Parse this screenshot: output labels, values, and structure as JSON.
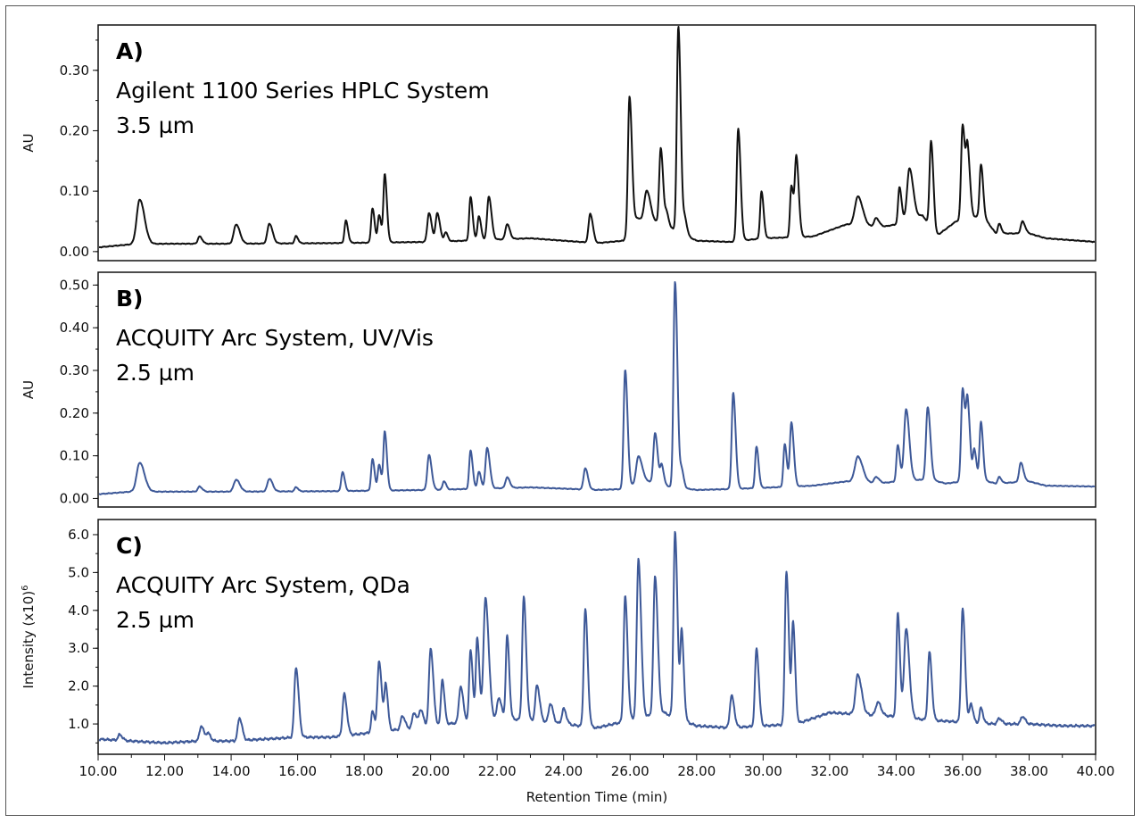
{
  "chart_data": {
    "type": "line",
    "xlabel": "Retention Time (min)",
    "xlim": [
      10.0,
      40.0
    ],
    "xticks": [
      "10.00",
      "12.00",
      "14.00",
      "16.00",
      "18.00",
      "20.00",
      "22.00",
      "24.00",
      "26.00",
      "28.00",
      "30.00",
      "32.00",
      "34.00",
      "36.00",
      "38.00",
      "40.00"
    ],
    "grid": false,
    "panels": [
      {
        "id": "A",
        "panel_label": "A)",
        "title": "Agilent 1100 Series HPLC System",
        "subtitle": "3.5 µm",
        "ylabel": "AU",
        "ylim": [
          -0.015,
          0.375
        ],
        "yticks": [
          "0.00",
          "0.10",
          "0.20",
          "0.30"
        ],
        "ytick_values": [
          0.0,
          0.1,
          0.2,
          0.3
        ],
        "color": "#111111",
        "baseline": [
          [
            10.0,
            0.007
          ],
          [
            11.0,
            0.012
          ],
          [
            12.0,
            0.013
          ],
          [
            14.0,
            0.013
          ],
          [
            17.0,
            0.014
          ],
          [
            20.0,
            0.016
          ],
          [
            23.0,
            0.022
          ],
          [
            25.0,
            0.014
          ],
          [
            25.8,
            0.018
          ],
          [
            26.2,
            0.055
          ],
          [
            27.0,
            0.045
          ],
          [
            28.0,
            0.018
          ],
          [
            29.0,
            0.016
          ],
          [
            30.0,
            0.022
          ],
          [
            31.5,
            0.025
          ],
          [
            32.5,
            0.045
          ],
          [
            33.5,
            0.04
          ],
          [
            34.0,
            0.045
          ],
          [
            34.8,
            0.06
          ],
          [
            35.2,
            0.025
          ],
          [
            35.8,
            0.05
          ],
          [
            36.6,
            0.06
          ],
          [
            37.0,
            0.03
          ],
          [
            38.0,
            0.03
          ],
          [
            38.5,
            0.022
          ],
          [
            40.0,
            0.016
          ]
        ],
        "peaks": [
          {
            "rt": 11.25,
            "height": 0.074,
            "width": 0.09
          },
          {
            "rt": 13.05,
            "height": 0.012,
            "width": 0.05
          },
          {
            "rt": 14.15,
            "height": 0.032,
            "width": 0.07
          },
          {
            "rt": 15.15,
            "height": 0.033,
            "width": 0.06
          },
          {
            "rt": 15.95,
            "height": 0.012,
            "width": 0.04
          },
          {
            "rt": 17.45,
            "height": 0.037,
            "width": 0.04
          },
          {
            "rt": 18.25,
            "height": 0.057,
            "width": 0.04
          },
          {
            "rt": 18.45,
            "height": 0.045,
            "width": 0.04
          },
          {
            "rt": 18.62,
            "height": 0.112,
            "width": 0.04
          },
          {
            "rt": 19.95,
            "height": 0.048,
            "width": 0.05
          },
          {
            "rt": 20.2,
            "height": 0.047,
            "width": 0.05
          },
          {
            "rt": 20.45,
            "height": 0.015,
            "width": 0.04
          },
          {
            "rt": 21.2,
            "height": 0.072,
            "width": 0.04
          },
          {
            "rt": 21.45,
            "height": 0.04,
            "width": 0.04
          },
          {
            "rt": 21.75,
            "height": 0.072,
            "width": 0.05
          },
          {
            "rt": 22.3,
            "height": 0.025,
            "width": 0.05
          },
          {
            "rt": 24.8,
            "height": 0.048,
            "width": 0.05
          },
          {
            "rt": 25.98,
            "height": 0.222,
            "width": 0.045
          },
          {
            "rt": 26.5,
            "height": 0.05,
            "width": 0.07
          },
          {
            "rt": 26.92,
            "height": 0.125,
            "width": 0.045
          },
          {
            "rt": 27.1,
            "height": 0.02,
            "width": 0.04
          },
          {
            "rt": 27.45,
            "height": 0.34,
            "width": 0.045
          },
          {
            "rt": 27.65,
            "height": 0.025,
            "width": 0.04
          },
          {
            "rt": 29.25,
            "height": 0.186,
            "width": 0.045
          },
          {
            "rt": 29.95,
            "height": 0.078,
            "width": 0.04
          },
          {
            "rt": 30.85,
            "height": 0.085,
            "width": 0.04
          },
          {
            "rt": 31.0,
            "height": 0.13,
            "width": 0.045
          },
          {
            "rt": 32.85,
            "height": 0.048,
            "width": 0.09
          },
          {
            "rt": 33.4,
            "height": 0.015,
            "width": 0.06
          },
          {
            "rt": 34.1,
            "height": 0.06,
            "width": 0.04
          },
          {
            "rt": 34.4,
            "height": 0.085,
            "width": 0.07
          },
          {
            "rt": 35.05,
            "height": 0.145,
            "width": 0.045
          },
          {
            "rt": 36.0,
            "height": 0.158,
            "width": 0.045
          },
          {
            "rt": 36.15,
            "height": 0.11,
            "width": 0.045
          },
          {
            "rt": 36.55,
            "height": 0.085,
            "width": 0.04
          },
          {
            "rt": 37.1,
            "height": 0.016,
            "width": 0.04
          },
          {
            "rt": 37.8,
            "height": 0.02,
            "width": 0.05
          }
        ]
      },
      {
        "id": "B",
        "panel_label": "B)",
        "title": "ACQUITY Arc System, UV/Vis",
        "subtitle": "2.5 µm",
        "ylabel": "AU",
        "ylim": [
          -0.02,
          0.53
        ],
        "yticks": [
          "0.00",
          "0.10",
          "0.20",
          "0.30",
          "0.40",
          "0.50"
        ],
        "ytick_values": [
          0.0,
          0.1,
          0.2,
          0.3,
          0.4,
          0.5
        ],
        "color": "#3e5998",
        "baseline": [
          [
            10.0,
            0.01
          ],
          [
            11.0,
            0.016
          ],
          [
            12.0,
            0.016
          ],
          [
            14.0,
            0.016
          ],
          [
            17.0,
            0.017
          ],
          [
            20.0,
            0.02
          ],
          [
            23.0,
            0.026
          ],
          [
            25.0,
            0.02
          ],
          [
            25.8,
            0.022
          ],
          [
            26.5,
            0.04
          ],
          [
            27.0,
            0.03
          ],
          [
            28.0,
            0.02
          ],
          [
            29.0,
            0.022
          ],
          [
            30.0,
            0.025
          ],
          [
            31.5,
            0.03
          ],
          [
            32.5,
            0.04
          ],
          [
            33.5,
            0.035
          ],
          [
            34.0,
            0.04
          ],
          [
            35.0,
            0.045
          ],
          [
            35.5,
            0.035
          ],
          [
            36.5,
            0.045
          ],
          [
            37.0,
            0.035
          ],
          [
            38.0,
            0.04
          ],
          [
            38.5,
            0.03
          ],
          [
            40.0,
            0.028
          ]
        ],
        "peaks": [
          {
            "rt": 11.25,
            "height": 0.068,
            "width": 0.09
          },
          {
            "rt": 13.05,
            "height": 0.012,
            "width": 0.05
          },
          {
            "rt": 14.15,
            "height": 0.028,
            "width": 0.07
          },
          {
            "rt": 15.15,
            "height": 0.03,
            "width": 0.06
          },
          {
            "rt": 15.95,
            "height": 0.01,
            "width": 0.04
          },
          {
            "rt": 17.35,
            "height": 0.045,
            "width": 0.04
          },
          {
            "rt": 18.25,
            "height": 0.074,
            "width": 0.04
          },
          {
            "rt": 18.45,
            "height": 0.06,
            "width": 0.04
          },
          {
            "rt": 18.62,
            "height": 0.137,
            "width": 0.04
          },
          {
            "rt": 19.95,
            "height": 0.082,
            "width": 0.05
          },
          {
            "rt": 20.4,
            "height": 0.02,
            "width": 0.04
          },
          {
            "rt": 21.2,
            "height": 0.09,
            "width": 0.04
          },
          {
            "rt": 21.45,
            "height": 0.04,
            "width": 0.04
          },
          {
            "rt": 21.7,
            "height": 0.095,
            "width": 0.05
          },
          {
            "rt": 22.3,
            "height": 0.025,
            "width": 0.05
          },
          {
            "rt": 24.65,
            "height": 0.05,
            "width": 0.05
          },
          {
            "rt": 25.85,
            "height": 0.278,
            "width": 0.045
          },
          {
            "rt": 26.25,
            "height": 0.065,
            "width": 0.07
          },
          {
            "rt": 26.75,
            "height": 0.118,
            "width": 0.05
          },
          {
            "rt": 26.95,
            "height": 0.045,
            "width": 0.04
          },
          {
            "rt": 27.35,
            "height": 0.482,
            "width": 0.045
          },
          {
            "rt": 27.55,
            "height": 0.04,
            "width": 0.04
          },
          {
            "rt": 29.1,
            "height": 0.225,
            "width": 0.045
          },
          {
            "rt": 29.8,
            "height": 0.097,
            "width": 0.04
          },
          {
            "rt": 30.65,
            "height": 0.1,
            "width": 0.04
          },
          {
            "rt": 30.85,
            "height": 0.15,
            "width": 0.045
          },
          {
            "rt": 32.85,
            "height": 0.06,
            "width": 0.09
          },
          {
            "rt": 33.4,
            "height": 0.015,
            "width": 0.06
          },
          {
            "rt": 34.05,
            "height": 0.085,
            "width": 0.04
          },
          {
            "rt": 34.3,
            "height": 0.168,
            "width": 0.06
          },
          {
            "rt": 34.95,
            "height": 0.17,
            "width": 0.05
          },
          {
            "rt": 36.0,
            "height": 0.218,
            "width": 0.045
          },
          {
            "rt": 36.15,
            "height": 0.175,
            "width": 0.045
          },
          {
            "rt": 36.35,
            "height": 0.07,
            "width": 0.04
          },
          {
            "rt": 36.55,
            "height": 0.135,
            "width": 0.04
          },
          {
            "rt": 37.1,
            "height": 0.015,
            "width": 0.04
          },
          {
            "rt": 37.75,
            "height": 0.045,
            "width": 0.05
          }
        ]
      },
      {
        "id": "C",
        "panel_label": "C)",
        "title": "ACQUITY Arc System, QDa",
        "subtitle": "2.5 µm",
        "ylabel": "Intensity (x10)",
        "ylabel_superscript": "6",
        "ylim": [
          0.2,
          6.4
        ],
        "yticks": [
          "1.0",
          "2.0",
          "3.0",
          "4.0",
          "5.0",
          "6.0"
        ],
        "ytick_values": [
          1.0,
          2.0,
          3.0,
          4.0,
          5.0,
          6.0
        ],
        "color": "#3e5998",
        "baseline": [
          [
            10.0,
            0.6
          ],
          [
            11.0,
            0.55
          ],
          [
            12.0,
            0.5
          ],
          [
            13.0,
            0.55
          ],
          [
            14.0,
            0.55
          ],
          [
            15.0,
            0.6
          ],
          [
            16.0,
            0.65
          ],
          [
            17.0,
            0.65
          ],
          [
            18.0,
            0.75
          ],
          [
            19.0,
            0.85
          ],
          [
            20.0,
            0.95
          ],
          [
            21.0,
            1.05
          ],
          [
            22.0,
            1.15
          ],
          [
            23.0,
            1.1
          ],
          [
            24.0,
            1.0
          ],
          [
            25.0,
            0.9
          ],
          [
            26.0,
            1.1
          ],
          [
            27.0,
            1.3
          ],
          [
            28.0,
            0.95
          ],
          [
            29.0,
            0.9
          ],
          [
            30.0,
            0.95
          ],
          [
            31.0,
            1.0
          ],
          [
            32.0,
            1.3
          ],
          [
            33.0,
            1.25
          ],
          [
            34.0,
            1.2
          ],
          [
            35.0,
            1.1
          ],
          [
            36.0,
            1.05
          ],
          [
            37.0,
            1.0
          ],
          [
            38.0,
            1.0
          ],
          [
            39.0,
            0.95
          ],
          [
            40.0,
            0.95
          ]
        ],
        "peaks": [
          {
            "rt": 10.65,
            "height": 0.15,
            "width": 0.05
          },
          {
            "rt": 13.1,
            "height": 0.4,
            "width": 0.05
          },
          {
            "rt": 13.3,
            "height": 0.2,
            "width": 0.05
          },
          {
            "rt": 14.25,
            "height": 0.6,
            "width": 0.05
          },
          {
            "rt": 15.95,
            "height": 1.85,
            "width": 0.05
          },
          {
            "rt": 17.4,
            "height": 1.1,
            "width": 0.05
          },
          {
            "rt": 18.25,
            "height": 0.55,
            "width": 0.04
          },
          {
            "rt": 18.45,
            "height": 1.85,
            "width": 0.05
          },
          {
            "rt": 18.65,
            "height": 1.2,
            "width": 0.04
          },
          {
            "rt": 19.15,
            "height": 0.35,
            "width": 0.05
          },
          {
            "rt": 19.5,
            "height": 0.4,
            "width": 0.05
          },
          {
            "rt": 19.7,
            "height": 0.45,
            "width": 0.05
          },
          {
            "rt": 20.0,
            "height": 2.05,
            "width": 0.05
          },
          {
            "rt": 20.35,
            "height": 1.2,
            "width": 0.04
          },
          {
            "rt": 20.9,
            "height": 0.95,
            "width": 0.05
          },
          {
            "rt": 21.2,
            "height": 1.9,
            "width": 0.04
          },
          {
            "rt": 21.4,
            "height": 2.2,
            "width": 0.04
          },
          {
            "rt": 21.65,
            "height": 3.2,
            "width": 0.06
          },
          {
            "rt": 22.05,
            "height": 0.55,
            "width": 0.05
          },
          {
            "rt": 22.3,
            "height": 2.2,
            "width": 0.04
          },
          {
            "rt": 22.8,
            "height": 3.25,
            "width": 0.045
          },
          {
            "rt": 23.2,
            "height": 0.95,
            "width": 0.05
          },
          {
            "rt": 23.6,
            "height": 0.5,
            "width": 0.05
          },
          {
            "rt": 24.0,
            "height": 0.4,
            "width": 0.05
          },
          {
            "rt": 24.65,
            "height": 3.1,
            "width": 0.045
          },
          {
            "rt": 25.85,
            "height": 3.3,
            "width": 0.045
          },
          {
            "rt": 26.25,
            "height": 4.2,
            "width": 0.05
          },
          {
            "rt": 26.75,
            "height": 3.65,
            "width": 0.05
          },
          {
            "rt": 27.35,
            "height": 4.9,
            "width": 0.045
          },
          {
            "rt": 27.55,
            "height": 2.3,
            "width": 0.04
          },
          {
            "rt": 29.05,
            "height": 0.85,
            "width": 0.05
          },
          {
            "rt": 29.8,
            "height": 2.05,
            "width": 0.045
          },
          {
            "rt": 30.7,
            "height": 4.05,
            "width": 0.045
          },
          {
            "rt": 30.9,
            "height": 2.65,
            "width": 0.04
          },
          {
            "rt": 32.85,
            "height": 1.05,
            "width": 0.07
          },
          {
            "rt": 33.45,
            "height": 0.35,
            "width": 0.06
          },
          {
            "rt": 34.05,
            "height": 2.75,
            "width": 0.04
          },
          {
            "rt": 34.3,
            "height": 2.35,
            "width": 0.06
          },
          {
            "rt": 35.0,
            "height": 1.8,
            "width": 0.045
          },
          {
            "rt": 36.0,
            "height": 3.0,
            "width": 0.045
          },
          {
            "rt": 36.25,
            "height": 0.5,
            "width": 0.04
          },
          {
            "rt": 36.55,
            "height": 0.4,
            "width": 0.04
          },
          {
            "rt": 37.1,
            "height": 0.15,
            "width": 0.05
          },
          {
            "rt": 37.8,
            "height": 0.2,
            "width": 0.05
          }
        ]
      }
    ]
  }
}
